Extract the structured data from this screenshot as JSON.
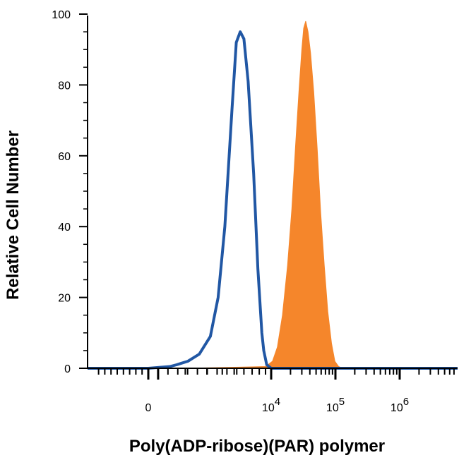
{
  "chart_data": {
    "type": "area",
    "title": "",
    "xlabel": "Poly(ADP-ribose)(PAR) polymer",
    "ylabel": "Relative Cell Number",
    "x_scale": "biexponential",
    "xlim": [
      -2000,
      10000000
    ],
    "ylim": [
      0,
      100
    ],
    "y_ticks": [
      0,
      20,
      40,
      60,
      80,
      100
    ],
    "x_tick_labels": [
      {
        "value": 0,
        "base": "0",
        "exp": ""
      },
      {
        "value": 10000,
        "base": "10",
        "exp": "4"
      },
      {
        "value": 100000,
        "base": "10",
        "exp": "5"
      },
      {
        "value": 1000000,
        "base": "10",
        "exp": "6"
      }
    ],
    "grid": false,
    "series": [
      {
        "style": "outline",
        "color": "#2157a4",
        "x": [
          -2000,
          1000,
          1500,
          1700,
          2100,
          2600,
          3200,
          3700,
          4200,
          4800,
          5200,
          5600,
          6000,
          6500,
          7200,
          7800,
          8400,
          8700,
          9200,
          10000,
          10000000
        ],
        "y": [
          0,
          0,
          0.5,
          1,
          2,
          4,
          9,
          20,
          40,
          73,
          92,
          95,
          93,
          81,
          55,
          28,
          10,
          5,
          1,
          0,
          0
        ]
      },
      {
        "style": "filled",
        "color": "#f5862b",
        "x": [
          -2000,
          2000,
          7000,
          9000,
          10500,
          12500,
          15000,
          18000,
          21000,
          24000,
          27000,
          30000,
          32000,
          34500,
          37500,
          41000,
          46000,
          52000,
          59000,
          67000,
          76000,
          87000,
          98000,
          112000,
          128000,
          10000000
        ],
        "y": [
          0,
          0,
          0.4,
          0.5,
          2,
          6,
          15,
          29,
          45,
          63,
          78,
          90,
          96,
          98,
          95,
          89,
          78,
          62,
          44,
          29,
          16,
          7,
          2,
          0.5,
          0,
          0
        ]
      }
    ]
  },
  "labels": {
    "ylabel": "Relative Cell Number",
    "xlabel": "Poly(ADP-ribose)(PAR) polymer"
  }
}
